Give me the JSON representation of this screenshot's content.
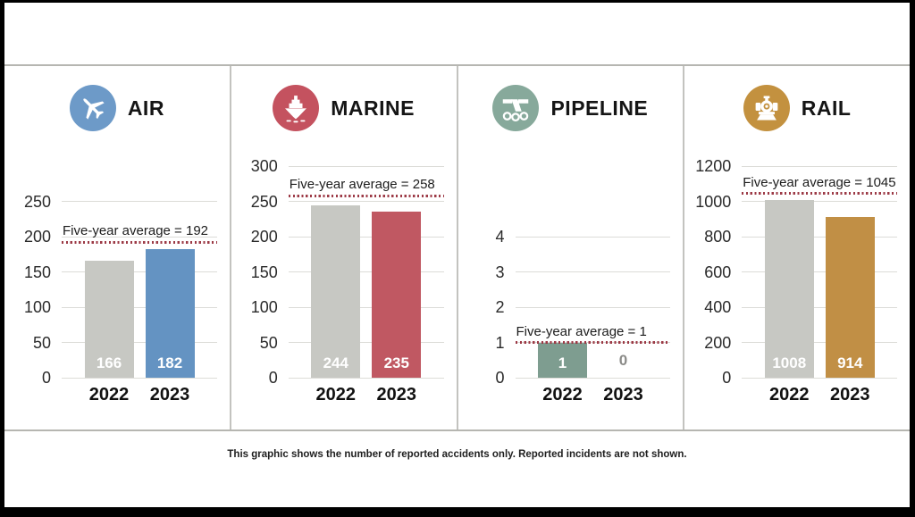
{
  "caption": "This graphic shows the number of reported accidents only. Reported incidents are not shown.",
  "styles": {
    "average_line_color": "#9c3a46",
    "grid_color": "#dcdcd8",
    "gray_bar_color": "#c7c8c3",
    "divider_color": "#c3c3bf",
    "zero_label_color": "#8b8b88"
  },
  "chart_data": [
    {
      "type": "bar",
      "title": "AIR",
      "icon": "airplane-icon",
      "icon_color": "#6d9ac8",
      "categories": [
        "2022",
        "2023"
      ],
      "values": [
        166,
        182
      ],
      "value_labels": [
        "166",
        "182"
      ],
      "bar_colors": [
        "#c7c8c3",
        "#6493c2"
      ],
      "average_value": 192,
      "average_label": "Five-year average = 192",
      "ylim": [
        0,
        250
      ],
      "ytick_step": 50,
      "yticks": [
        "0",
        "50",
        "100",
        "150",
        "200",
        "250"
      ],
      "grid": true,
      "legend_position": "none"
    },
    {
      "type": "bar",
      "title": "MARINE",
      "icon": "ship-icon",
      "icon_color": "#c4525f",
      "categories": [
        "2022",
        "2023"
      ],
      "values": [
        244,
        235
      ],
      "value_labels": [
        "244",
        "235"
      ],
      "bar_colors": [
        "#c7c8c3",
        "#c05862"
      ],
      "average_value": 258,
      "average_label": "Five-year average = 258",
      "ylim": [
        0,
        300
      ],
      "ytick_step": 50,
      "yticks": [
        "0",
        "50",
        "100",
        "150",
        "200",
        "250",
        "300"
      ],
      "grid": true,
      "legend_position": "none"
    },
    {
      "type": "bar",
      "title": "PIPELINE",
      "icon": "pipeline-icon",
      "icon_color": "#87a99b",
      "categories": [
        "2022",
        "2023"
      ],
      "values": [
        1,
        0
      ],
      "value_labels": [
        "1",
        "0"
      ],
      "bar_colors": [
        "#7e9d90",
        "#7e9d90"
      ],
      "average_value": 1,
      "average_label": "Five-year average = 1",
      "ylim": [
        0,
        4
      ],
      "ytick_step": 1,
      "yticks": [
        "0",
        "1",
        "2",
        "3",
        "4"
      ],
      "grid": true,
      "legend_position": "none"
    },
    {
      "type": "bar",
      "title": "RAIL",
      "icon": "locomotive-icon",
      "icon_color": "#c3913f",
      "categories": [
        "2022",
        "2023"
      ],
      "values": [
        1008,
        914
      ],
      "value_labels": [
        "1008",
        "914"
      ],
      "bar_colors": [
        "#c7c8c3",
        "#c18f45"
      ],
      "average_value": 1045,
      "average_label": "Five-year average = 1045",
      "ylim": [
        0,
        1200
      ],
      "ytick_step": 200,
      "yticks": [
        "0",
        "200",
        "400",
        "600",
        "800",
        "1000",
        "1200"
      ],
      "grid": true,
      "legend_position": "none"
    }
  ]
}
